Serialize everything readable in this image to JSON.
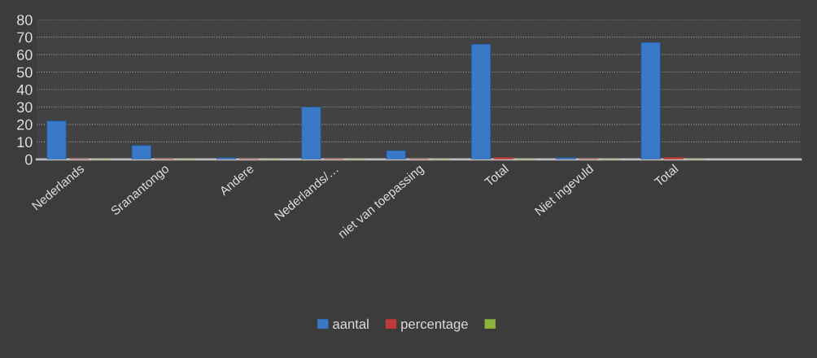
{
  "chart_data": {
    "type": "bar",
    "categories": [
      "Nederlands",
      "Sranantongo",
      "Andere",
      "Nederlands/…",
      "niet van toepassing",
      "Total",
      "Niet ingevuld",
      "Total",
      null
    ],
    "series": [
      {
        "name": "aantal",
        "color": "#3a78c8",
        "values": [
          22,
          8,
          1,
          30,
          5,
          66,
          1,
          67,
          null
        ]
      },
      {
        "name": "percentage",
        "color": "#c0393b",
        "values": [
          0,
          0,
          0,
          0,
          0,
          1,
          0,
          1,
          null
        ]
      },
      {
        "color": "#8db33a",
        "values": [
          0,
          0,
          0,
          0,
          0,
          0,
          0,
          0,
          null
        ]
      }
    ],
    "ylim": [
      0,
      80
    ],
    "yticks": [
      0,
      10,
      20,
      30,
      40,
      50,
      60,
      70,
      80
    ],
    "grid": "y",
    "legend": "bottom"
  }
}
